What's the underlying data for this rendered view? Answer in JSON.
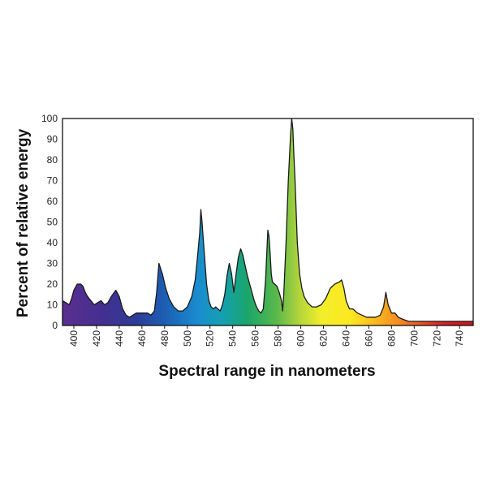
{
  "chart_data": {
    "type": "area",
    "title": "",
    "xlabel": "Spectral range in nanometers",
    "ylabel": "Percent of relative energy",
    "xlim": [
      390,
      752
    ],
    "ylim": [
      0,
      100
    ],
    "x_ticks": [
      400,
      420,
      440,
      460,
      480,
      500,
      520,
      540,
      560,
      580,
      600,
      620,
      640,
      660,
      680,
      700,
      720,
      740
    ],
    "y_ticks": [
      0,
      10,
      20,
      30,
      40,
      50,
      60,
      70,
      80,
      90,
      100
    ],
    "fill": "visible-spectrum gradient (violet → blue → green → yellow → orange → red)",
    "grid": false,
    "legend": "none",
    "series": [
      {
        "x": [
          390,
          393,
          396,
          398,
          400,
          403,
          406,
          408,
          410,
          412,
          415,
          418,
          421,
          424,
          427,
          430,
          433,
          437,
          440,
          443,
          446,
          449,
          452,
          455,
          460,
          465,
          468,
          471,
          473,
          475,
          478,
          481,
          484,
          488,
          492,
          496,
          500,
          504,
          507,
          509,
          511,
          512,
          513,
          515,
          517,
          519,
          521,
          523,
          525,
          527,
          529,
          531,
          533,
          535,
          537,
          539,
          541,
          543,
          545,
          547,
          549,
          551,
          553,
          555,
          557,
          559,
          561,
          563,
          565,
          567,
          569,
          571,
          572,
          573,
          574,
          575,
          577,
          579,
          581,
          583,
          584,
          585,
          587,
          589,
          591,
          592,
          593,
          594,
          595,
          596,
          597,
          599,
          601,
          603,
          606,
          610,
          614,
          618,
          622,
          626,
          630,
          634,
          636,
          638,
          640,
          643,
          646,
          650,
          654,
          658,
          662,
          666,
          670,
          673,
          675,
          677,
          680,
          683,
          686,
          690,
          695,
          700,
          710,
          720,
          730,
          740,
          752
        ],
        "y": [
          12,
          11,
          10,
          13,
          17,
          20,
          20,
          19,
          16,
          14,
          12,
          10,
          11,
          12,
          10,
          11,
          14,
          17,
          14,
          8,
          5,
          4,
          5,
          6,
          6,
          6,
          5,
          7,
          16,
          30,
          25,
          18,
          13,
          9,
          7,
          7,
          9,
          14,
          22,
          33,
          45,
          56,
          50,
          35,
          20,
          12,
          9,
          8,
          9,
          8,
          7,
          10,
          15,
          24,
          30,
          25,
          16,
          25,
          33,
          37,
          34,
          29,
          24,
          20,
          16,
          12,
          9,
          7,
          6,
          8,
          22,
          46,
          43,
          35,
          25,
          21,
          20,
          19,
          16,
          12,
          7,
          15,
          40,
          70,
          92,
          100,
          95,
          82,
          70,
          55,
          40,
          25,
          18,
          14,
          11,
          9,
          9,
          10,
          13,
          18,
          20,
          21,
          22,
          18,
          12,
          8,
          8,
          6,
          5,
          4,
          4,
          4,
          5,
          9,
          16,
          10,
          6,
          6,
          4,
          3,
          2,
          2,
          2,
          2,
          2,
          2,
          2
        ]
      }
    ]
  }
}
